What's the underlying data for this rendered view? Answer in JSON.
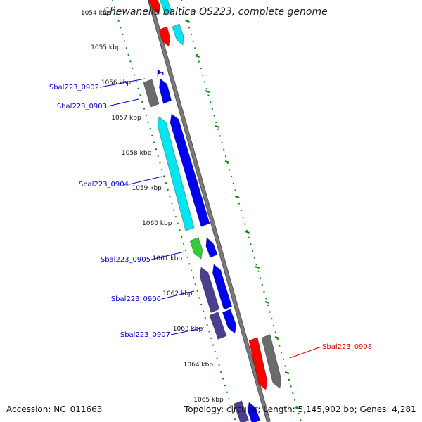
{
  "title": "Shewanella baltica OS223, complete genome",
  "footer": {
    "accession": "Accession: NC_011663",
    "summary": "Topology: circular; Length: 5,145,902 bp; Genes: 4,281"
  },
  "ticks": [
    "1054 kbp",
    "1055 kbp",
    "1056 kbp",
    "1057 kbp",
    "1058 kbp",
    "1059 kbp",
    "1060 kbp",
    "1061 kbp",
    "1062 kbp",
    "1063 kbp",
    "1064 kbp",
    "1065 kbp"
  ],
  "gene_labels": [
    {
      "name": "Sbal223_0902",
      "color": "#0000cc"
    },
    {
      "name": "Sbal223_0903",
      "color": "#0000cc"
    },
    {
      "name": "Sbal223_0904",
      "color": "#0000cc"
    },
    {
      "name": "Sbal223_0905",
      "color": "#0000cc"
    },
    {
      "name": "Sbal223_0906",
      "color": "#0000cc"
    },
    {
      "name": "Sbal223_0907",
      "color": "#0000cc"
    },
    {
      "name": "Sbal223_0908",
      "color": "#dd0000"
    }
  ],
  "colors": {
    "backbone": "#7a7a7a",
    "ruler": "#118811",
    "red": "#ff0000",
    "blue": "#0000ee",
    "cyan": "#00e5ee",
    "grey": "#6b6b6b",
    "green": "#33cc33",
    "slate": "#4a3f8f",
    "label_blue": "#0000cc",
    "label_red": "#dd0000"
  }
}
